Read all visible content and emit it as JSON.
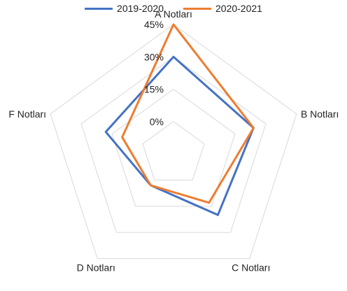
{
  "chart_data": {
    "type": "radar",
    "categories": [
      "A Notları",
      "B Notları",
      "C Notları",
      "D Notları",
      "F Notları"
    ],
    "series": [
      {
        "name": "2019-2020",
        "color": "#4472C4",
        "values": [
          30,
          24,
          20,
          3,
          18
        ]
      },
      {
        "name": "2020-2021",
        "color": "#ED7D31",
        "values": [
          45,
          24,
          13,
          3,
          10
        ]
      }
    ],
    "radial_ticks": [
      "0%",
      "15%",
      "30%",
      "45%"
    ],
    "radial_tick_values": [
      0,
      15,
      30,
      45
    ],
    "rlim": [
      -15,
      45
    ],
    "grid": true,
    "legend_position": "top"
  }
}
